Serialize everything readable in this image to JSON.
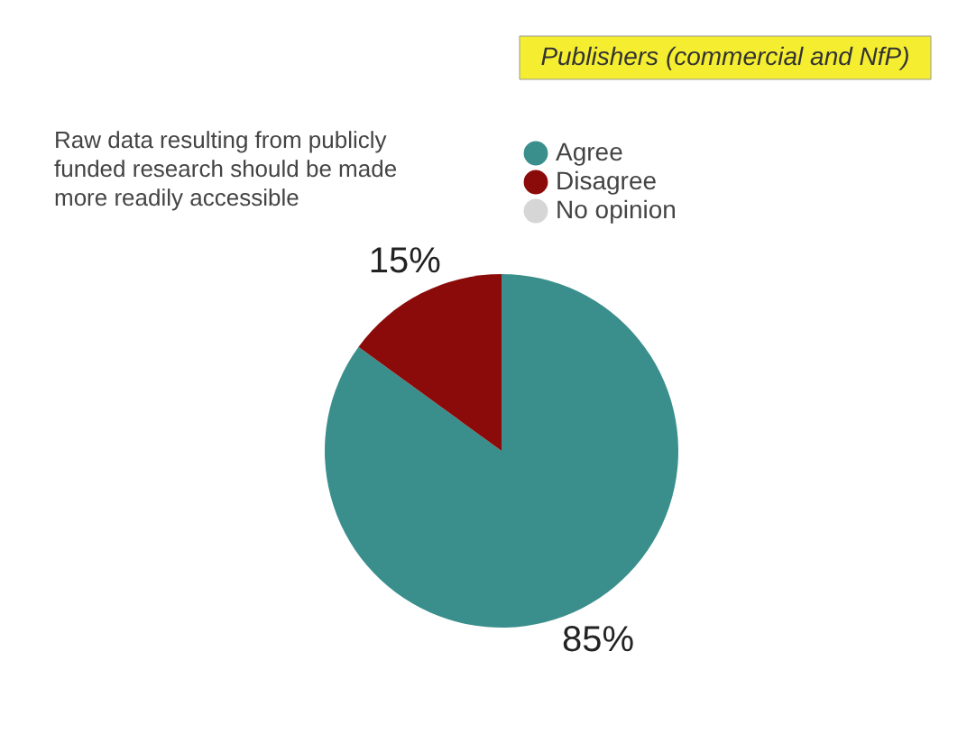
{
  "chart_data": {
    "type": "pie",
    "title": "Publishers (commercial and NfP)",
    "subtitle": "Raw data resulting from publicly funded research should be made more readily accessible",
    "categories": [
      "Agree",
      "Disagree",
      "No opinion"
    ],
    "values": [
      85,
      15,
      0
    ],
    "colors": [
      "#3a8f8c",
      "#8b0a0a",
      "#d6d6d6"
    ],
    "value_labels": [
      "85%",
      "15%",
      null
    ],
    "legend": "top right"
  }
}
